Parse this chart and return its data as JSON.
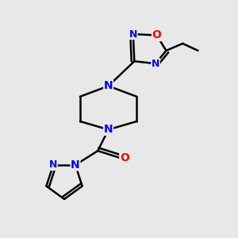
{
  "bg_color": "#e8e8e8",
  "bond_color": "#000000",
  "N_color": "#0000ff",
  "O_color": "#ff0000",
  "line_width": 1.8,
  "font_size_atom": 10,
  "figsize": [
    3.0,
    3.0
  ],
  "dpi": 100,
  "xlim": [
    0,
    10
  ],
  "ylim": [
    0,
    10
  ]
}
